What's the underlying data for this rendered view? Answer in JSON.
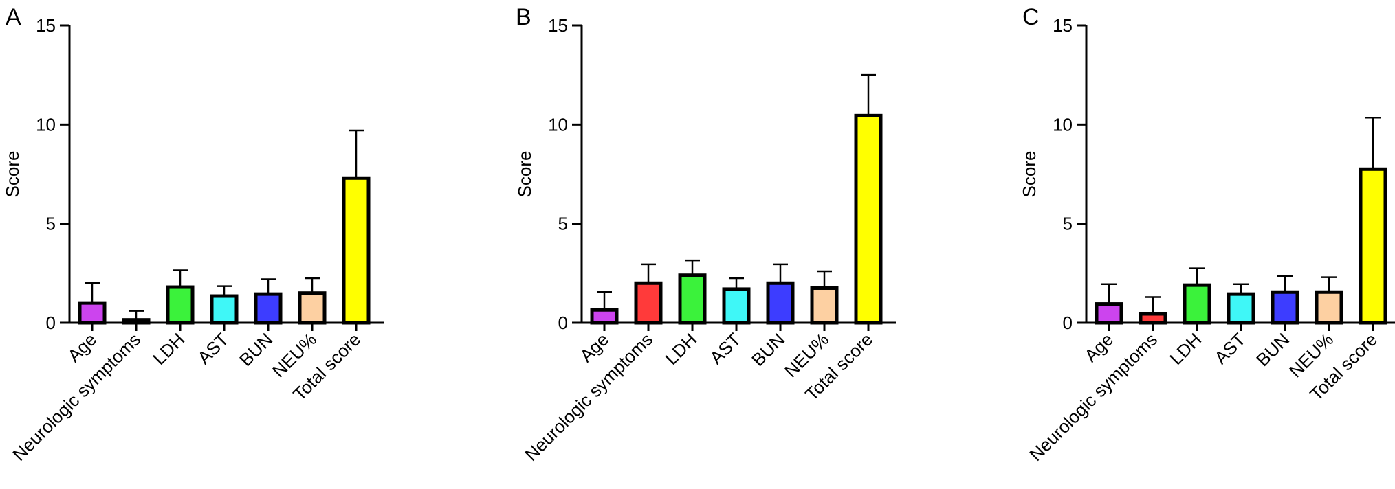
{
  "chart_data": [
    {
      "panel_label": "A",
      "type": "bar",
      "ylabel": "Score",
      "ylim": [
        0,
        15
      ],
      "yticks": [
        "0",
        "5",
        "10",
        "15"
      ],
      "categories": [
        "Age",
        "Neurologic symptoms",
        "LDH",
        "AST",
        "BUN",
        "NEU%",
        "Total score"
      ],
      "values": [
        1.0,
        0.15,
        1.8,
        1.35,
        1.45,
        1.5,
        7.3
      ],
      "error_upper": [
        2.0,
        0.6,
        2.65,
        1.85,
        2.2,
        2.25,
        9.7
      ],
      "colors": [
        "#cc44ee",
        "#ff3a3a",
        "#3bf23b",
        "#3ff7f7",
        "#3d3dff",
        "#fdd0a2",
        "#ffff00"
      ]
    },
    {
      "panel_label": "B",
      "type": "bar",
      "ylabel": "Score",
      "ylim": [
        0,
        15
      ],
      "yticks": [
        "0",
        "5",
        "10",
        "15"
      ],
      "categories": [
        "Age",
        "Neurologic symptoms",
        "LDH",
        "AST",
        "BUN",
        "NEU%",
        "Total score"
      ],
      "values": [
        0.65,
        2.0,
        2.4,
        1.7,
        2.0,
        1.75,
        10.45
      ],
      "error_upper": [
        1.55,
        2.95,
        3.15,
        2.25,
        2.95,
        2.6,
        12.5
      ],
      "colors": [
        "#cc44ee",
        "#ff3a3a",
        "#3bf23b",
        "#3ff7f7",
        "#3d3dff",
        "#fdd0a2",
        "#ffff00"
      ]
    },
    {
      "panel_label": "C",
      "type": "bar",
      "ylabel": "Score",
      "ylim": [
        0,
        15
      ],
      "yticks": [
        "0",
        "5",
        "10",
        "15"
      ],
      "categories": [
        "Age",
        "Neurologic symptoms",
        "LDH",
        "AST",
        "BUN",
        "NEU%",
        "Total score"
      ],
      "values": [
        0.95,
        0.45,
        1.9,
        1.45,
        1.55,
        1.55,
        7.75
      ],
      "error_upper": [
        1.95,
        1.3,
        2.75,
        1.95,
        2.35,
        2.3,
        10.35
      ],
      "colors": [
        "#cc44ee",
        "#ff3a3a",
        "#3bf23b",
        "#3ff7f7",
        "#3d3dff",
        "#fdd0a2",
        "#ffff00"
      ]
    }
  ]
}
